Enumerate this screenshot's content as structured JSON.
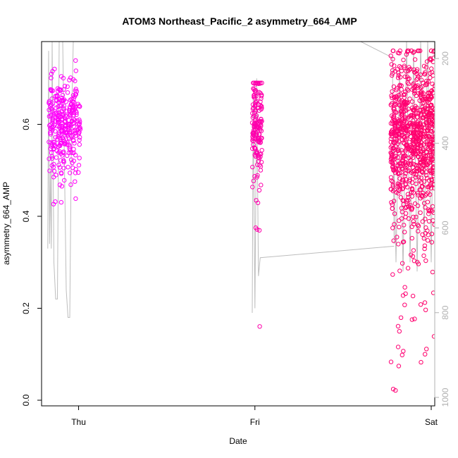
{
  "chart_data": {
    "type": "scatter",
    "title": "ATOM3 Northeast_Pacific_2 asymmetry_664_AMP",
    "xlabel": "Date",
    "ylabel": "asymmetry_664_AMP",
    "x_ticks": [
      "Thu",
      "Fri",
      "Sat"
    ],
    "x_tick_values": [
      0.0,
      1.0,
      2.0
    ],
    "xlim": [
      -0.21,
      2.02
    ],
    "ylim": [
      0.0,
      0.78
    ],
    "y_ticks": [
      0.0,
      0.2,
      0.4,
      0.6
    ],
    "y_right_ticks": [
      200,
      400,
      600,
      800,
      1000
    ],
    "y_right_lim": [
      1020,
      160
    ],
    "y_right_reversed": true,
    "grid": false,
    "legend": "none",
    "series": [
      {
        "marker": "open-circle",
        "color_start": "#ff00ff",
        "color_end": "#ff0066",
        "clusters": [
          {
            "x_range": [
              -0.17,
              0.01
            ],
            "y_center": 0.6,
            "y_spread": 0.05,
            "y_min": 0.42,
            "y_max": 0.74,
            "count": 320
          },
          {
            "x_range": [
              0.985,
              1.04
            ],
            "y_center": 0.6,
            "y_spread": 0.06,
            "y_min": 0.15,
            "y_max": 0.69,
            "count": 160
          },
          {
            "x_range": [
              1.77,
              2.02
            ],
            "y_center": 0.57,
            "y_spread": 0.09,
            "y_min": 0.015,
            "y_max": 0.76,
            "count": 900
          }
        ]
      },
      {
        "marker": "line",
        "color": "#bdbdbd",
        "points": [
          [
            -0.175,
            0.33
          ],
          [
            -0.17,
            0.76
          ],
          [
            -0.165,
            0.34
          ],
          [
            -0.16,
            0.5
          ],
          [
            -0.155,
            0.33
          ],
          [
            -0.15,
            0.78
          ],
          [
            -0.14,
            0.3
          ],
          [
            -0.13,
            0.22
          ],
          [
            -0.12,
            0.22
          ],
          [
            -0.11,
            0.78
          ],
          [
            -0.09,
            0.78
          ],
          [
            -0.07,
            0.24
          ],
          [
            -0.06,
            0.18
          ],
          [
            -0.05,
            0.18
          ],
          [
            -0.04,
            0.6
          ],
          [
            -0.03,
            0.78
          ],
          [
            0.0,
            0.78
          ],
          [
            1.0,
            0.78
          ],
          [
            1.6,
            0.78
          ],
          [
            1.78,
            0.745
          ],
          [
            1.79,
            0.34
          ],
          [
            1.785,
            0.6
          ],
          [
            1.8,
            0.3
          ],
          [
            1.82,
            0.72
          ],
          [
            1.84,
            0.28
          ],
          [
            1.86,
            0.78
          ],
          [
            1.88,
            0.3
          ],
          [
            1.9,
            0.76
          ],
          [
            1.92,
            0.28
          ],
          [
            1.94,
            0.78
          ],
          [
            1.96,
            0.35
          ],
          [
            1.98,
            0.78
          ],
          [
            2.0,
            0.3
          ],
          [
            2.01,
            0.62
          ]
        ],
        "fri_segment": [
          [
            0.985,
            0.19
          ],
          [
            0.99,
            0.66
          ],
          [
            1.0,
            0.2
          ],
          [
            1.01,
            0.7
          ],
          [
            1.02,
            0.27
          ],
          [
            1.03,
            0.31
          ],
          [
            1.79,
            0.335
          ]
        ]
      }
    ]
  }
}
